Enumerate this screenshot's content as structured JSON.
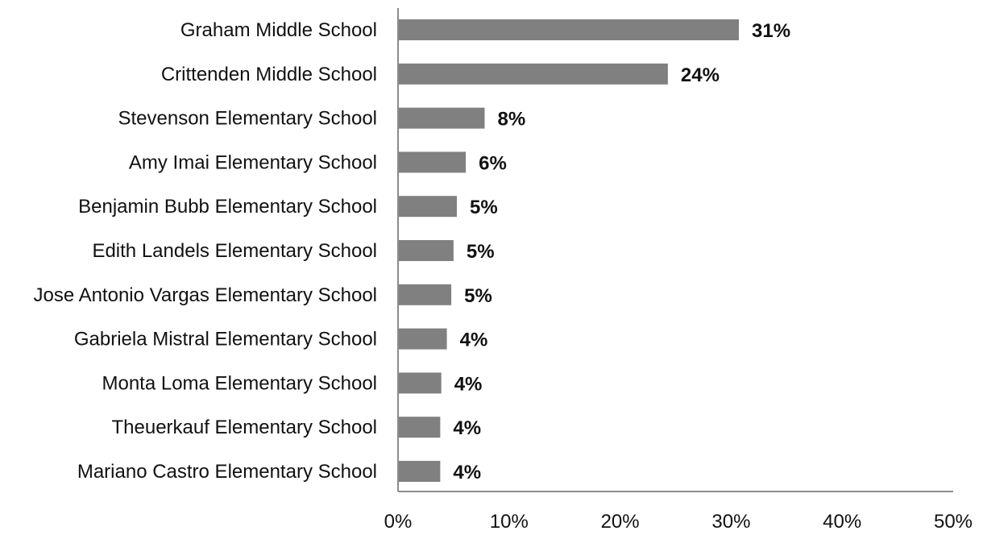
{
  "chart_data": {
    "type": "bar",
    "orientation": "horizontal",
    "title": "",
    "xlabel": "",
    "ylabel": "",
    "categories": [
      "Graham Middle School",
      "Crittenden Middle School",
      "Stevenson Elementary School",
      "Amy Imai Elementary School",
      "Benjamin Bubb Elementary School",
      "Edith Landels Elementary School",
      "Jose Antonio Vargas Elementary School",
      "Gabriela Mistral Elementary School",
      "Monta Loma Elementary School",
      "Theuerkauf Elementary School",
      "Mariano Castro Elementary School"
    ],
    "values": [
      30.7,
      24.3,
      7.8,
      6.1,
      5.3,
      5.0,
      4.8,
      4.4,
      3.9,
      3.8,
      3.8
    ],
    "value_labels": [
      "31%",
      "24%",
      "8%",
      "6%",
      "5%",
      "5%",
      "5%",
      "4%",
      "4%",
      "4%",
      "4%"
    ],
    "xlim": [
      0,
      50
    ],
    "xticks": [
      0,
      10,
      20,
      30,
      40,
      50
    ],
    "xtick_labels": [
      "0%",
      "10%",
      "20%",
      "30%",
      "40%",
      "50%"
    ],
    "grid": false,
    "legend": "none",
    "bar_color": "#808080",
    "axis_color": "#8c8c8c"
  }
}
